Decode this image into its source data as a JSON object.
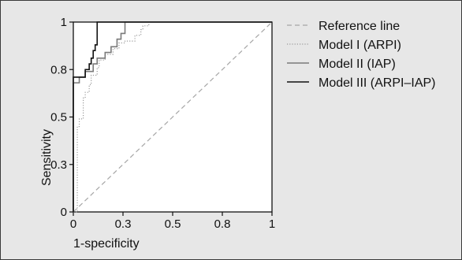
{
  "chart_data": {
    "type": "line",
    "xlabel": "1-specificity",
    "ylabel": "Sensitivity",
    "xlim": [
      0,
      1
    ],
    "ylim": [
      0,
      1
    ],
    "xticks": [
      0,
      0.25,
      0.5,
      0.75,
      1
    ],
    "xtick_labels": [
      "0",
      "0.3",
      "0.5",
      "0.8",
      "1"
    ],
    "yticks": [
      0,
      0.25,
      0.5,
      0.75,
      1
    ],
    "ytick_labels": [
      "0",
      "0.3",
      "0.5",
      "0.8",
      "1"
    ],
    "grid": false,
    "legend_position": "top-right",
    "series": [
      {
        "name": "Reference line",
        "style": "dashed",
        "color": "#a6a6a6",
        "x": [
          0,
          1
        ],
        "y": [
          0,
          1
        ]
      },
      {
        "name": "Model I (ARPI)",
        "style": "dotted",
        "color": "#9a9a9a",
        "x": [
          0,
          0.02,
          0.02,
          0.03,
          0.03,
          0.05,
          0.05,
          0.06,
          0.06,
          0.08,
          0.08,
          0.09,
          0.09,
          0.12,
          0.12,
          0.13,
          0.13,
          0.16,
          0.16,
          0.2,
          0.2,
          0.23,
          0.23,
          0.26,
          0.26,
          0.31,
          0.31,
          0.34,
          0.34,
          0.35,
          0.35,
          0.38,
          0.38,
          1
        ],
        "y": [
          0,
          0,
          0.45,
          0.45,
          0.49,
          0.49,
          0.6,
          0.6,
          0.63,
          0.63,
          0.67,
          0.67,
          0.72,
          0.72,
          0.76,
          0.76,
          0.8,
          0.8,
          0.83,
          0.83,
          0.86,
          0.86,
          0.89,
          0.89,
          0.9,
          0.9,
          0.93,
          0.93,
          0.96,
          0.96,
          0.98,
          0.98,
          1,
          1
        ]
      },
      {
        "name": "Model II (IAP)",
        "style": "solid",
        "color": "#7a7a7a",
        "x": [
          0,
          0,
          0.03,
          0.03,
          0.06,
          0.06,
          0.1,
          0.1,
          0.12,
          0.12,
          0.16,
          0.16,
          0.19,
          0.19,
          0.22,
          0.22,
          0.24,
          0.24,
          0.26,
          0.26,
          1
        ],
        "y": [
          0,
          0.68,
          0.68,
          0.71,
          0.71,
          0.74,
          0.74,
          0.78,
          0.78,
          0.81,
          0.81,
          0.84,
          0.84,
          0.87,
          0.87,
          0.91,
          0.91,
          0.94,
          0.94,
          1,
          1
        ]
      },
      {
        "name": "Model III (ARPI–IAP)",
        "style": "solid",
        "color": "#111111",
        "x": [
          0,
          0,
          0.06,
          0.06,
          0.08,
          0.08,
          0.09,
          0.09,
          0.1,
          0.1,
          0.11,
          0.11,
          0.12,
          0.12,
          1
        ],
        "y": [
          0,
          0.71,
          0.71,
          0.75,
          0.75,
          0.78,
          0.78,
          0.81,
          0.81,
          0.85,
          0.85,
          0.88,
          0.88,
          1,
          1
        ]
      }
    ]
  }
}
